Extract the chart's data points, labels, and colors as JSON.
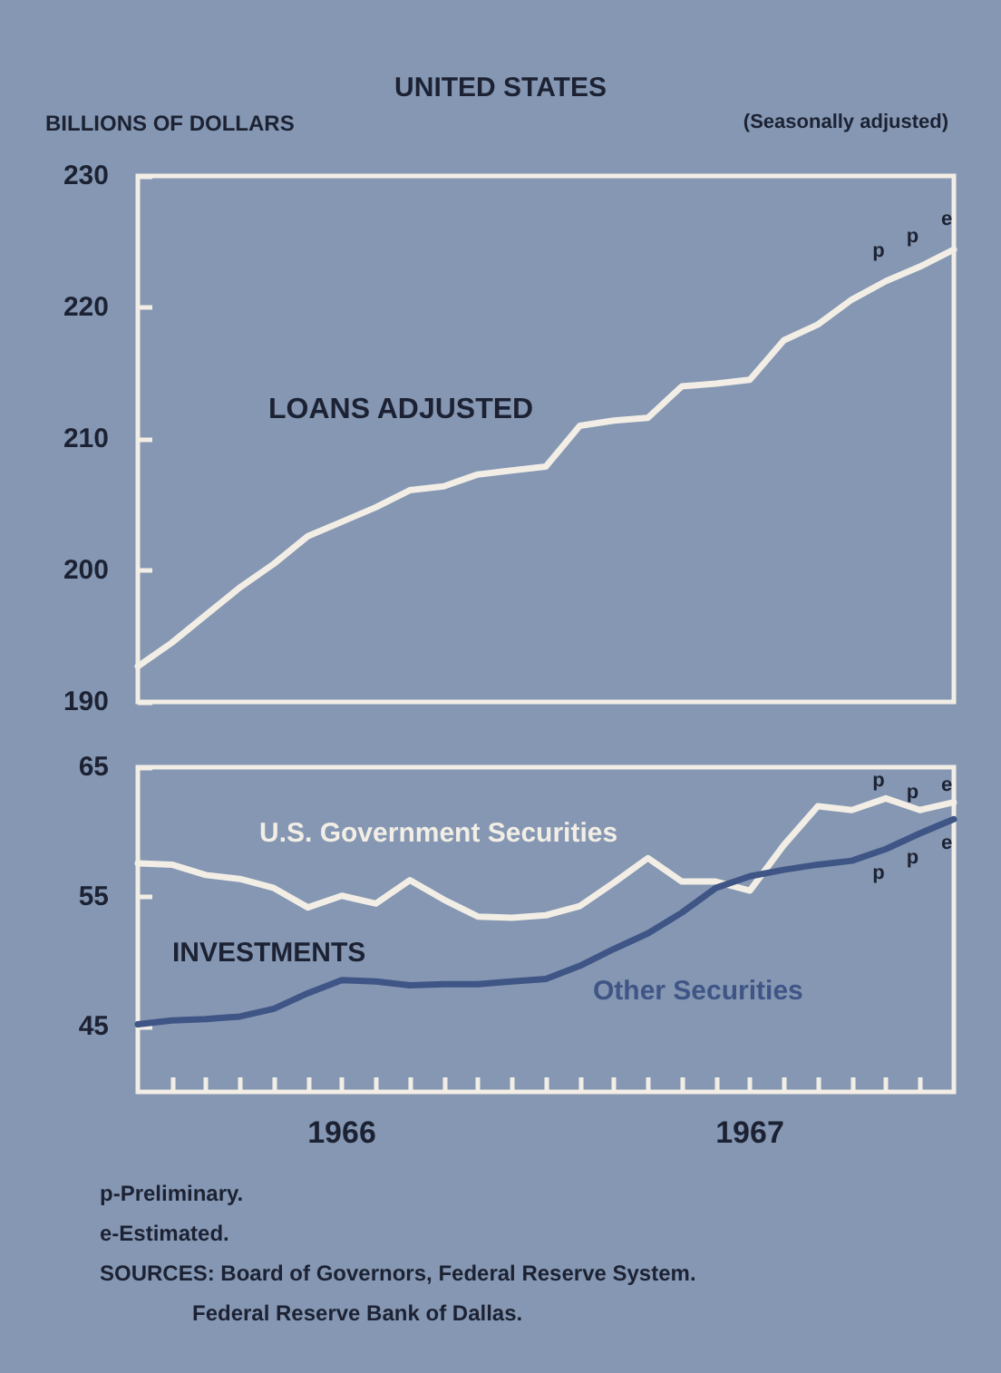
{
  "chart_data": [
    {
      "type": "line",
      "title": "UNITED STATES",
      "subtitle": "(Seasonally adjusted)",
      "ylabel": "BILLIONS OF DOLLARS",
      "x": [
        "1965-07",
        "1965-08",
        "1965-09",
        "1965-10",
        "1965-11",
        "1965-12",
        "1966-01",
        "1966-02",
        "1966-03",
        "1966-04",
        "1966-05",
        "1966-06",
        "1966-07",
        "1966-08",
        "1966-09",
        "1966-10",
        "1966-11",
        "1966-12",
        "1967-01",
        "1967-02",
        "1967-03",
        "1967-04",
        "1967-05",
        "1967-06",
        "1967-07"
      ],
      "series": [
        {
          "name": "LOANS ADJUSTED",
          "color": "#f2eee6",
          "values": [
            192.7,
            194.5,
            196.6,
            198.7,
            200.5,
            202.6,
            203.7,
            204.8,
            206.1,
            206.4,
            207.3,
            207.6,
            207.9,
            211.0,
            211.4,
            211.6,
            214.0,
            214.2,
            214.5,
            217.5,
            218.7,
            220.6,
            222.0,
            223.1,
            224.4
          ]
        }
      ],
      "xlim": [
        "1965-07",
        "1967-07"
      ],
      "ylim": [
        190,
        230
      ],
      "yticks": [
        190,
        200,
        210,
        220,
        230
      ],
      "tick_labels": "y",
      "grid": false,
      "legend": false,
      "marker": "none",
      "line_style": "solid",
      "annotations": [
        {
          "text": "p",
          "x": "1967-05",
          "y": 222.0
        },
        {
          "text": "p",
          "x": "1967-06",
          "y": 223.1
        },
        {
          "text": "e",
          "x": "1967-07",
          "y": 224.4
        }
      ]
    },
    {
      "type": "line",
      "title": "INVESTMENTS",
      "x": [
        "1965-07",
        "1965-08",
        "1965-09",
        "1965-10",
        "1965-11",
        "1965-12",
        "1966-01",
        "1966-02",
        "1966-03",
        "1966-04",
        "1966-05",
        "1966-06",
        "1966-07",
        "1966-08",
        "1966-09",
        "1966-10",
        "1966-11",
        "1966-12",
        "1967-01",
        "1967-02",
        "1967-03",
        "1967-04",
        "1967-05",
        "1967-06",
        "1967-07"
      ],
      "series": [
        {
          "name": "U.S. Government Securities",
          "color": "#f2eee6",
          "values": [
            57.6,
            57.5,
            56.7,
            56.4,
            55.7,
            54.2,
            55.1,
            54.5,
            56.3,
            54.8,
            53.5,
            53.4,
            53.6,
            54.3,
            56.1,
            58.0,
            56.2,
            56.2,
            55.5,
            59.0,
            62.0,
            61.7,
            62.6,
            61.7,
            62.3
          ]
        },
        {
          "name": "Other Securities",
          "color": "#3f5586",
          "values": [
            45.2,
            45.5,
            45.6,
            45.8,
            46.4,
            47.6,
            48.6,
            48.5,
            48.2,
            48.3,
            48.3,
            48.5,
            48.7,
            49.7,
            51.0,
            52.2,
            53.8,
            55.7,
            56.6,
            57.1,
            57.5,
            57.8,
            58.7,
            59.9,
            61.0
          ]
        }
      ],
      "xlim": [
        "1965-07",
        "1967-07"
      ],
      "xticks": [
        {
          "value": "1965-08",
          "label": null
        },
        {
          "value": "1965-09",
          "label": null
        },
        {
          "value": "1965-10",
          "label": null
        },
        {
          "value": "1965-11",
          "label": null
        },
        {
          "value": "1965-12",
          "label": null
        },
        {
          "value": "1966-01",
          "label": "1966"
        },
        {
          "value": "1966-02",
          "label": null
        },
        {
          "value": "1966-03",
          "label": null
        },
        {
          "value": "1966-04",
          "label": null
        },
        {
          "value": "1966-05",
          "label": null
        },
        {
          "value": "1966-06",
          "label": null
        },
        {
          "value": "1966-07",
          "label": null
        },
        {
          "value": "1966-08",
          "label": null
        },
        {
          "value": "1966-09",
          "label": null
        },
        {
          "value": "1966-10",
          "label": null
        },
        {
          "value": "1966-11",
          "label": null
        },
        {
          "value": "1966-12",
          "label": null
        },
        {
          "value": "1967-01",
          "label": "1967"
        },
        {
          "value": "1967-02",
          "label": null
        },
        {
          "value": "1967-03",
          "label": null
        },
        {
          "value": "1967-04",
          "label": null
        },
        {
          "value": "1967-05",
          "label": null
        },
        {
          "value": "1967-06",
          "label": null
        }
      ],
      "ylim": [
        40,
        65
      ],
      "yticks": [
        45,
        55,
        65
      ],
      "grid": false,
      "legend": false,
      "marker": "none",
      "line_style": "solid",
      "annotations": [
        {
          "text": "p",
          "x": "1967-05",
          "y": 62.6
        },
        {
          "text": "p",
          "x": "1967-06",
          "y": 61.7
        },
        {
          "text": "e",
          "x": "1967-07",
          "y": 62.3
        },
        {
          "text": "p",
          "x": "1967-05",
          "y": 58.7
        },
        {
          "text": "p",
          "x": "1967-06",
          "y": 59.9
        },
        {
          "text": "e",
          "x": "1967-07",
          "y": 61.0
        },
        "p-Preliminary.",
        "e-Estimated.",
        "SOURCES: Board of Governors, Federal Reserve System.",
        "Federal Reserve Bank of Dallas."
      ]
    }
  ]
}
